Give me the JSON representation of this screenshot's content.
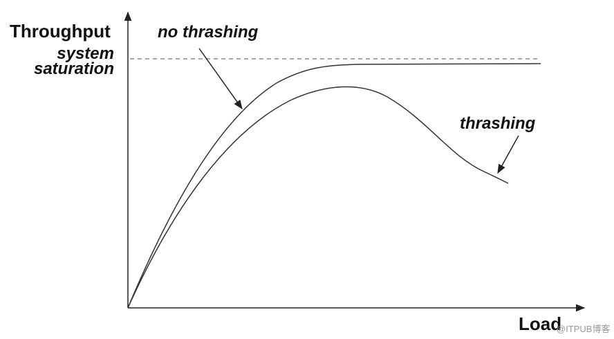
{
  "axes": {
    "y_label": "Throughput",
    "x_label": "Load"
  },
  "saturation_label": [
    "system",
    "saturation"
  ],
  "curves": {
    "no_thrashing": "no thrashing",
    "thrashing": "thrashing"
  },
  "watermark": "@ITPUB博客"
}
